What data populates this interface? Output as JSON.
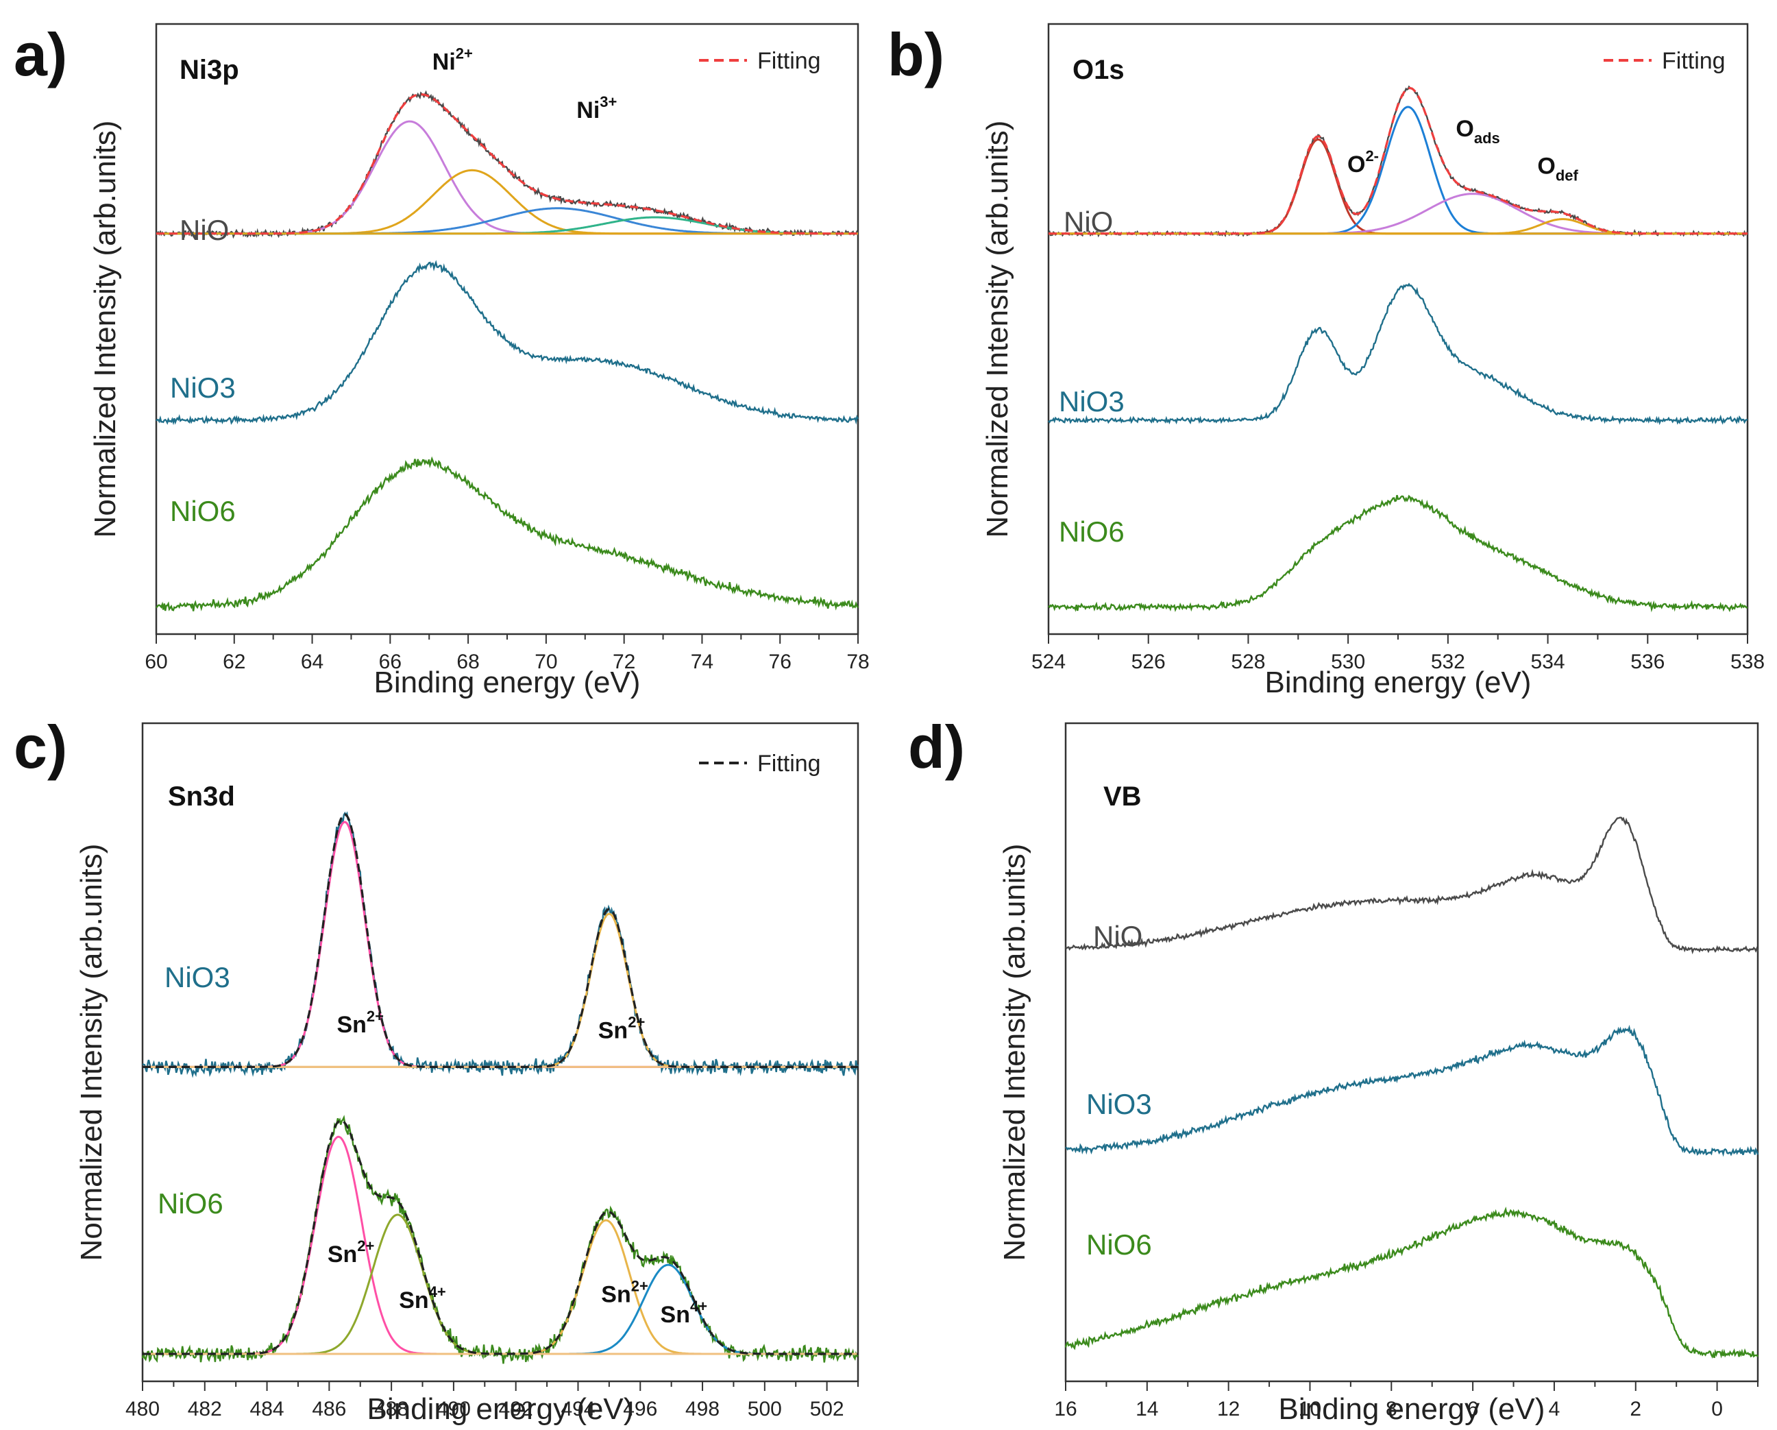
{
  "colors": {
    "NiO": "#4a4a4a",
    "NiO3": "#1f6f8b",
    "NiO6": "#3b8a1c",
    "fit_red": "#ef3e3e",
    "fit_black": "#222222",
    "Ni2_a": "#c77ddb",
    "Ni2_b": "#e0a51c",
    "Ni3_a": "#3a86d6",
    "Ni3_b": "#2fb38a",
    "O2": "#1c7fd6",
    "Oads": "#c77ddb",
    "Odef": "#e0a51c",
    "Sn2_a": "#ff4fa6",
    "Sn2_b": "#e8b54a",
    "Sn4_a": "#8ea82c",
    "Sn4_b": "#1a8ac4"
  },
  "chart_data": [
    {
      "type": "line",
      "panel": "a)",
      "title": "Ni3p",
      "xlabel": "Binding energy (eV)",
      "ylabel": "Normalized Intensity (arb.units)",
      "xlim": [
        60,
        78
      ],
      "xticks": [
        "60",
        "62",
        "64",
        "66",
        "68",
        "70",
        "72",
        "74",
        "76",
        "78"
      ],
      "legend": "Fitting",
      "legend_style": "red-dashed",
      "samples": [
        "NiO",
        "NiO3",
        "NiO6"
      ],
      "series": [
        {
          "name": "NiO",
          "offset": 2.0,
          "base": 0.0,
          "noise": 0.012,
          "peaks": [
            {
              "center": 66.5,
              "amp": 0.62,
              "width": 0.9
            },
            {
              "center": 68.1,
              "amp": 0.35,
              "width": 1.0
            },
            {
              "center": 70.3,
              "amp": 0.14,
              "width": 1.5
            },
            {
              "center": 72.8,
              "amp": 0.09,
              "width": 1.3
            }
          ]
        },
        {
          "name": "NiO3",
          "offset": 1.0,
          "base": 0.0,
          "noise": 0.012,
          "peaks": [
            {
              "center": 66.9,
              "amp": 0.72,
              "width": 1.25
            },
            {
              "center": 70.2,
              "amp": 0.26,
              "width": 2.5
            },
            {
              "center": 72.4,
              "amp": 0.1,
              "width": 1.8
            }
          ]
        },
        {
          "name": "NiO6",
          "offset": 0.0,
          "base": 0.0,
          "noise": 0.018,
          "peaks": [
            {
              "center": 66.6,
              "amp": 0.66,
              "width": 1.7
            },
            {
              "center": 70.6,
              "amp": 0.3,
              "width": 2.8
            }
          ]
        }
      ],
      "annotations": [
        {
          "text": "Ni",
          "sup": "2+",
          "x": 67.6,
          "y": 2.88
        },
        {
          "text": "Ni",
          "sup": "3+",
          "x": 71.3,
          "y": 2.62
        }
      ]
    },
    {
      "type": "line",
      "panel": "b)",
      "title": "O1s",
      "xlabel": "Binding energy (eV)",
      "ylabel": "Normalized Intensity (arb.units)",
      "xlim": [
        524,
        538
      ],
      "xticks": [
        "524",
        "526",
        "528",
        "530",
        "532",
        "534",
        "536",
        "538"
      ],
      "legend": "Fitting",
      "legend_style": "red-dashed",
      "samples": [
        "NiO",
        "NiO3",
        "NiO6"
      ],
      "series": [
        {
          "name": "NiO",
          "offset": 2.0,
          "base": 0.0,
          "noise": 0.008,
          "peaks": [
            {
              "center": 529.4,
              "amp": 0.52,
              "width": 0.35
            },
            {
              "center": 531.2,
              "amp": 0.7,
              "width": 0.45
            },
            {
              "center": 532.5,
              "amp": 0.22,
              "width": 0.9
            },
            {
              "center": 534.3,
              "amp": 0.08,
              "width": 0.45
            }
          ]
        },
        {
          "name": "NiO3",
          "offset": 1.0,
          "base": 0.0,
          "noise": 0.01,
          "peaks": [
            {
              "center": 529.4,
              "amp": 0.48,
              "width": 0.42
            },
            {
              "center": 531.1,
              "amp": 0.62,
              "width": 0.55
            },
            {
              "center": 532.4,
              "amp": 0.25,
              "width": 0.95
            }
          ]
        },
        {
          "name": "NiO6",
          "offset": 0.0,
          "base": 0.0,
          "noise": 0.014,
          "peaks": [
            {
              "center": 529.4,
              "amp": 0.22,
              "width": 0.7
            },
            {
              "center": 531.0,
              "amp": 0.5,
              "width": 0.95
            },
            {
              "center": 533.0,
              "amp": 0.25,
              "width": 1.2
            }
          ]
        }
      ],
      "annotations": [
        {
          "text": "O",
          "sup": "2-",
          "x": 530.3,
          "y": 2.33
        },
        {
          "text": "O",
          "sub": "ads",
          "x": 532.6,
          "y": 2.52
        },
        {
          "text": "O",
          "sub": "def",
          "x": 534.2,
          "y": 2.32
        }
      ]
    },
    {
      "type": "line",
      "panel": "c)",
      "title": "Sn3d",
      "xlabel": "Binding energy (eV)",
      "ylabel": "Normalized Intensity (arb.units)",
      "xlim": [
        480,
        503
      ],
      "xticks": [
        "480",
        "482",
        "484",
        "486",
        "488",
        "490",
        "492",
        "494",
        "496",
        "498",
        "500",
        "502"
      ],
      "legend": "Fitting",
      "legend_style": "black-dashed",
      "samples": [
        "NiO3",
        "NiO6"
      ],
      "series": [
        {
          "name": "NiO3",
          "offset": 1.0,
          "base": 0.0,
          "noise": 0.02,
          "peaks": [
            {
              "center": 486.5,
              "amp": 0.88,
              "width": 0.65
            },
            {
              "center": 495.0,
              "amp": 0.55,
              "width": 0.6
            }
          ]
        },
        {
          "name": "NiO6",
          "offset": 0.0,
          "base": 0.0,
          "noise": 0.022,
          "peaks": [
            {
              "center": 486.3,
              "amp": 0.78,
              "width": 0.75
            },
            {
              "center": 488.2,
              "amp": 0.5,
              "width": 0.8
            },
            {
              "center": 494.9,
              "amp": 0.48,
              "width": 0.75
            },
            {
              "center": 496.9,
              "amp": 0.32,
              "width": 0.8
            }
          ]
        }
      ],
      "annotations": [
        {
          "text": "Sn",
          "sup": "2+",
          "x": 487.0,
          "y": 1.12
        },
        {
          "text": "Sn",
          "sup": "2+",
          "x": 495.4,
          "y": 1.1
        },
        {
          "text": "Sn",
          "sup": "2+",
          "x": 486.7,
          "y": 0.32
        },
        {
          "text": "Sn",
          "sup": "4+",
          "x": 489.0,
          "y": 0.16
        },
        {
          "text": "Sn",
          "sup": "2+",
          "x": 495.5,
          "y": 0.18
        },
        {
          "text": "Sn",
          "sup": "4+",
          "x": 497.4,
          "y": 0.11
        }
      ]
    },
    {
      "type": "line",
      "panel": "d)",
      "title": "VB",
      "xlabel": "Binding energy (eV)",
      "ylabel": "Normalized Intensity (arb.units)",
      "xlim": [
        16,
        -1
      ],
      "xticks": [
        "16",
        "14",
        "12",
        "10",
        "8",
        "6",
        "4",
        "2",
        "0"
      ],
      "legend": "",
      "samples": [
        "NiO",
        "NiO3",
        "NiO6"
      ],
      "series": [
        {
          "name": "NiO",
          "offset": 2.0,
          "base": 0.0,
          "noise": 0.01,
          "edge": 1.2,
          "peaks": [
            {
              "center": 9.5,
              "amp": 0.18,
              "width": 2.5
            },
            {
              "center": 4.2,
              "amp": 0.28,
              "width": 1.2
            },
            {
              "center": 2.3,
              "amp": 0.55,
              "width": 0.55
            },
            {
              "center": 6.5,
              "amp": 0.12,
              "width": 2.0
            }
          ]
        },
        {
          "name": "NiO3",
          "offset": 1.0,
          "base": 0.0,
          "noise": 0.014,
          "edge": 1.1,
          "peaks": [
            {
              "center": 9.5,
              "amp": 0.25,
              "width": 2.5
            },
            {
              "center": 4.0,
              "amp": 0.4,
              "width": 1.6
            },
            {
              "center": 2.1,
              "amp": 0.38,
              "width": 0.6
            },
            {
              "center": 6.5,
              "amp": 0.18,
              "width": 2.0
            }
          ]
        },
        {
          "name": "NiO6",
          "offset": 0.0,
          "base": 0.0,
          "noise": 0.016,
          "edge": 1.0,
          "peaks": [
            {
              "center": 10.5,
              "amp": 0.3,
              "width": 2.8
            },
            {
              "center": 4.3,
              "amp": 0.55,
              "width": 2.0
            },
            {
              "center": 2.0,
              "amp": 0.2,
              "width": 0.7
            },
            {
              "center": 7.0,
              "amp": 0.22,
              "width": 2.0
            }
          ]
        }
      ],
      "annotations": []
    }
  ]
}
